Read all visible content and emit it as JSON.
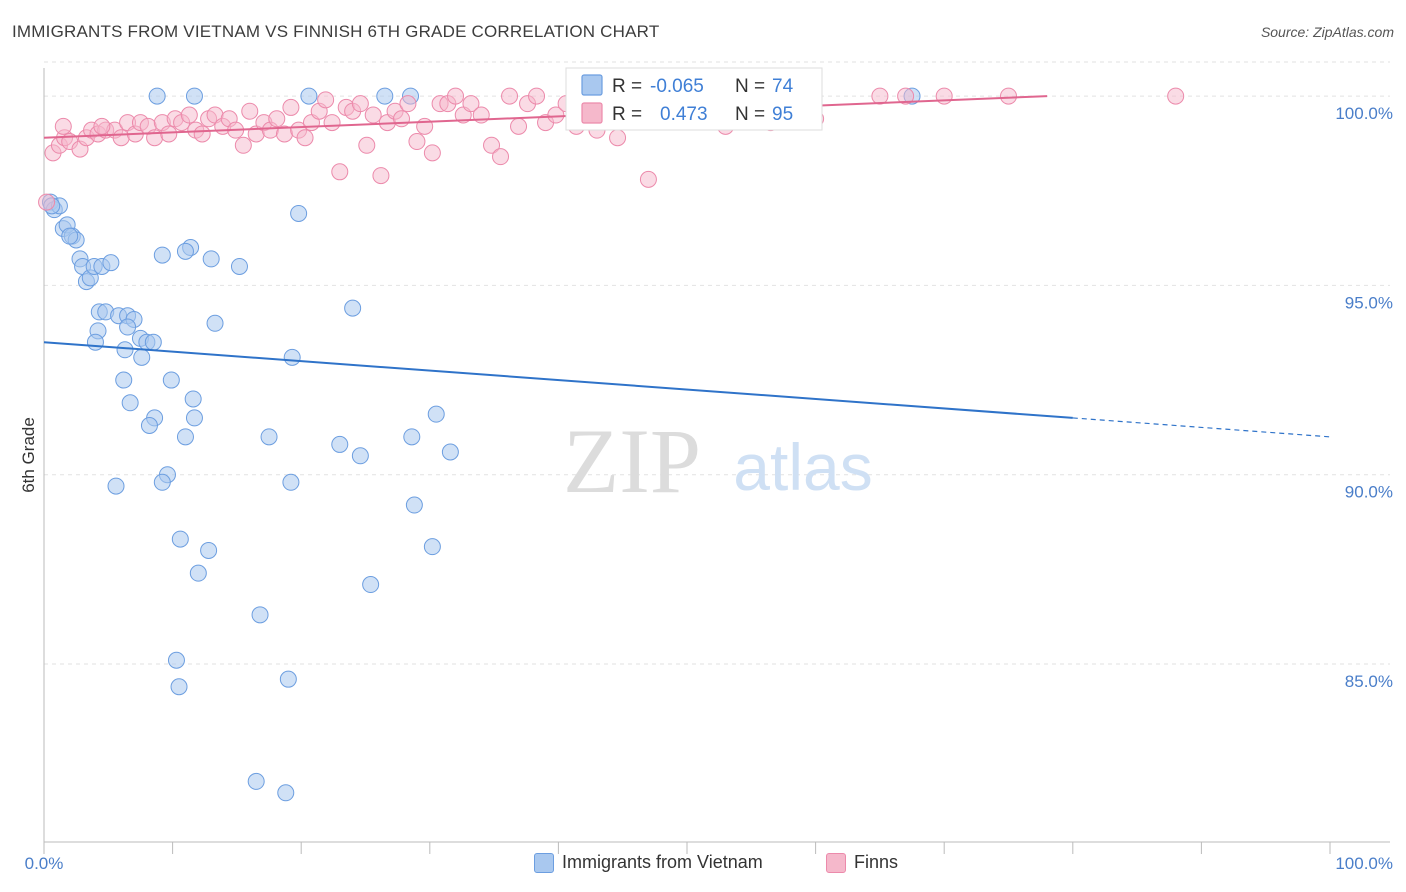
{
  "header": {
    "title": "IMMIGRANTS FROM VIETNAM VS FINNISH 6TH GRADE CORRELATION CHART",
    "source": "Source: ZipAtlas.com"
  },
  "watermark": {
    "zip": "ZIP",
    "atlas": "atlas"
  },
  "legend_box": {
    "rows": [
      {
        "r_label": "R =",
        "r_value": "-0.065",
        "n_label": "N =",
        "n_value": "74"
      },
      {
        "r_label": "R =",
        "r_value": "0.473",
        "n_label": "N =",
        "n_value": "95"
      }
    ]
  },
  "bottom_legend": [
    {
      "label": "Immigrants from Vietnam"
    },
    {
      "label": "Finns"
    }
  ],
  "colors": {
    "blue_fill": "#a9c8ef",
    "blue_stroke": "#6c9ee0",
    "blue_line": "#2f73c9",
    "pink_fill": "#f5b8cb",
    "pink_stroke": "#ec8aab",
    "pink_line": "#e0668f",
    "grid": "#e2e2e2",
    "axis_text": "#4a7ec9"
  },
  "chart_data": {
    "type": "scatter",
    "title": "IMMIGRANTS FROM VIETNAM VS FINNISH 6TH GRADE CORRELATION CHART",
    "ylabel": "6th Grade",
    "xlabel": "",
    "x_tick_labels": [
      "0.0%",
      "100.0%"
    ],
    "y_tick_labels": [
      "100.0%",
      "95.0%",
      "90.0%",
      "85.0%"
    ],
    "y_ticks": [
      100,
      95,
      90,
      85
    ],
    "xlim": [
      0,
      100
    ],
    "ylim": [
      80.3,
      100.9
    ],
    "grid": true,
    "series": [
      {
        "name": "Immigrants from Vietnam",
        "r": -0.065,
        "n": 74,
        "trend": {
          "x0": 0,
          "y0": 93.5,
          "x1": 80,
          "y1": 91.5,
          "dash_to_x": 100,
          "dash_to_y": 91.0
        },
        "points": [
          [
            0.5,
            97.2
          ],
          [
            0.8,
            97.0
          ],
          [
            1.2,
            97.1
          ],
          [
            1.5,
            96.5
          ],
          [
            1.8,
            96.6
          ],
          [
            2.2,
            96.3
          ],
          [
            2.5,
            96.2
          ],
          [
            2.8,
            95.7
          ],
          [
            3.0,
            95.5
          ],
          [
            3.3,
            95.1
          ],
          [
            3.6,
            95.2
          ],
          [
            3.9,
            95.5
          ],
          [
            4.5,
            95.5
          ],
          [
            5.2,
            95.6
          ],
          [
            4.3,
            94.3
          ],
          [
            4.8,
            94.3
          ],
          [
            5.8,
            94.2
          ],
          [
            6.5,
            94.2
          ],
          [
            7.0,
            94.1
          ],
          [
            4.2,
            93.8
          ],
          [
            4.0,
            93.5
          ],
          [
            6.5,
            93.9
          ],
          [
            7.5,
            93.6
          ],
          [
            8.0,
            93.5
          ],
          [
            6.3,
            93.3
          ],
          [
            7.6,
            93.1
          ],
          [
            6.2,
            92.5
          ],
          [
            9.9,
            92.5
          ],
          [
            6.7,
            91.9
          ],
          [
            8.6,
            91.5
          ],
          [
            8.2,
            91.3
          ],
          [
            11.6,
            92.0
          ],
          [
            11.7,
            91.5
          ],
          [
            11.0,
            91.0
          ],
          [
            13.0,
            95.7
          ],
          [
            11.4,
            96.0
          ],
          [
            11.0,
            95.9
          ],
          [
            13.3,
            94.0
          ],
          [
            15.2,
            95.5
          ],
          [
            9.2,
            95.8
          ],
          [
            9.6,
            90.0
          ],
          [
            9.2,
            89.8
          ],
          [
            5.6,
            89.7
          ],
          [
            10.6,
            88.3
          ],
          [
            12.8,
            88.0
          ],
          [
            12.0,
            87.4
          ],
          [
            16.8,
            86.3
          ],
          [
            10.3,
            85.1
          ],
          [
            10.5,
            84.4
          ],
          [
            19.0,
            84.6
          ],
          [
            16.5,
            81.9
          ],
          [
            18.8,
            81.6
          ],
          [
            19.2,
            89.8
          ],
          [
            17.5,
            91.0
          ],
          [
            23.0,
            90.8
          ],
          [
            24.6,
            90.5
          ],
          [
            28.6,
            91.0
          ],
          [
            28.8,
            89.2
          ],
          [
            25.4,
            87.1
          ],
          [
            30.2,
            88.1
          ],
          [
            30.5,
            91.6
          ],
          [
            31.6,
            90.6
          ],
          [
            24.0,
            94.4
          ],
          [
            19.3,
            93.1
          ],
          [
            19.8,
            96.9
          ],
          [
            8.8,
            100.0
          ],
          [
            11.7,
            100.0
          ],
          [
            20.6,
            100.0
          ],
          [
            26.5,
            100.0
          ],
          [
            28.5,
            100.0
          ],
          [
            0.6,
            97.1
          ],
          [
            2.0,
            96.3
          ],
          [
            8.5,
            93.5
          ],
          [
            67.5,
            100.0
          ]
        ]
      },
      {
        "name": "Finns",
        "r": 0.473,
        "n": 95,
        "trend": {
          "x0": 0,
          "y0": 98.9,
          "x1": 78,
          "y1": 100.0
        },
        "points": [
          [
            0.2,
            97.2
          ],
          [
            0.7,
            98.5
          ],
          [
            1.2,
            98.7
          ],
          [
            1.6,
            98.9
          ],
          [
            2.0,
            98.8
          ],
          [
            2.8,
            98.6
          ],
          [
            3.3,
            98.9
          ],
          [
            3.7,
            99.1
          ],
          [
            4.2,
            99.0
          ],
          [
            4.8,
            99.1
          ],
          [
            5.5,
            99.1
          ],
          [
            6.0,
            98.9
          ],
          [
            6.5,
            99.3
          ],
          [
            7.1,
            99.0
          ],
          [
            7.5,
            99.3
          ],
          [
            8.1,
            99.2
          ],
          [
            8.6,
            98.9
          ],
          [
            9.2,
            99.3
          ],
          [
            9.7,
            99.0
          ],
          [
            10.2,
            99.4
          ],
          [
            10.7,
            99.3
          ],
          [
            11.3,
            99.5
          ],
          [
            11.8,
            99.1
          ],
          [
            12.3,
            99.0
          ],
          [
            12.8,
            99.4
          ],
          [
            13.3,
            99.5
          ],
          [
            13.9,
            99.2
          ],
          [
            14.4,
            99.4
          ],
          [
            14.9,
            99.1
          ],
          [
            15.5,
            98.7
          ],
          [
            16.0,
            99.6
          ],
          [
            16.5,
            99.0
          ],
          [
            17.1,
            99.3
          ],
          [
            17.6,
            99.1
          ],
          [
            18.1,
            99.4
          ],
          [
            18.7,
            99.0
          ],
          [
            19.2,
            99.7
          ],
          [
            19.8,
            99.1
          ],
          [
            20.3,
            98.9
          ],
          [
            20.8,
            99.3
          ],
          [
            21.4,
            99.6
          ],
          [
            21.9,
            99.9
          ],
          [
            22.4,
            99.3
          ],
          [
            23.0,
            98.0
          ],
          [
            23.5,
            99.7
          ],
          [
            24.0,
            99.6
          ],
          [
            24.6,
            99.8
          ],
          [
            25.1,
            98.7
          ],
          [
            25.6,
            99.5
          ],
          [
            26.2,
            97.9
          ],
          [
            26.7,
            99.3
          ],
          [
            27.3,
            99.6
          ],
          [
            27.8,
            99.4
          ],
          [
            28.3,
            99.8
          ],
          [
            29.0,
            98.8
          ],
          [
            29.6,
            99.2
          ],
          [
            30.2,
            98.5
          ],
          [
            30.8,
            99.8
          ],
          [
            31.4,
            99.8
          ],
          [
            32.0,
            100.0
          ],
          [
            32.6,
            99.5
          ],
          [
            33.2,
            99.8
          ],
          [
            34.0,
            99.5
          ],
          [
            34.8,
            98.7
          ],
          [
            35.5,
            98.4
          ],
          [
            36.2,
            100.0
          ],
          [
            36.9,
            99.2
          ],
          [
            37.6,
            99.8
          ],
          [
            38.3,
            100.0
          ],
          [
            39.0,
            99.3
          ],
          [
            39.8,
            99.5
          ],
          [
            40.6,
            99.8
          ],
          [
            41.4,
            99.2
          ],
          [
            42.2,
            100.0
          ],
          [
            43.0,
            99.1
          ],
          [
            43.8,
            99.5
          ],
          [
            44.6,
            98.9
          ],
          [
            45.4,
            99.8
          ],
          [
            46.2,
            100.0
          ],
          [
            47.0,
            97.8
          ],
          [
            48.5,
            100.0
          ],
          [
            50.0,
            99.5
          ],
          [
            51.5,
            100.0
          ],
          [
            53.0,
            99.2
          ],
          [
            55.0,
            100.0
          ],
          [
            56.5,
            99.3
          ],
          [
            58.0,
            100.0
          ],
          [
            60.0,
            99.4
          ],
          [
            65.0,
            100.0
          ],
          [
            67.0,
            100.0
          ],
          [
            70.0,
            100.0
          ],
          [
            75.0,
            100.0
          ],
          [
            88.0,
            100.0
          ],
          [
            1.5,
            99.2
          ],
          [
            4.5,
            99.2
          ]
        ]
      }
    ]
  }
}
